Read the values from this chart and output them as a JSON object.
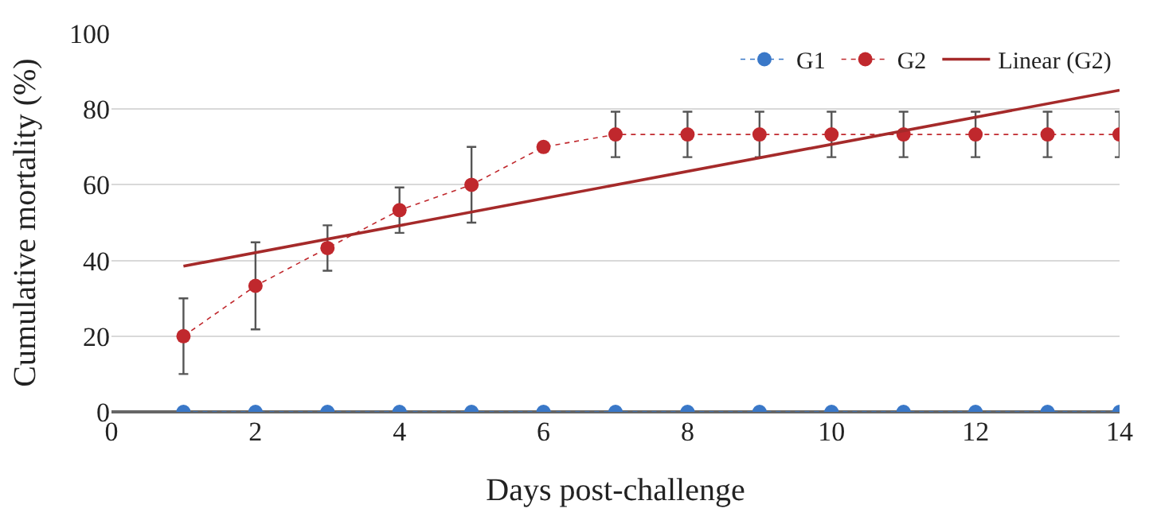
{
  "chart_data": {
    "type": "line",
    "xlabel": "Days post-challenge",
    "ylabel": "Cumulative mortality (%)",
    "x": [
      1,
      2,
      3,
      4,
      5,
      6,
      7,
      8,
      9,
      10,
      11,
      12,
      13,
      14
    ],
    "series": [
      {
        "name": "G1",
        "color": "#3a78c8",
        "values": [
          0,
          0,
          0,
          0,
          0,
          0,
          0,
          0,
          0,
          0,
          0,
          0,
          0,
          0
        ],
        "marker": "circle",
        "line_style": "dotted"
      },
      {
        "name": "G2",
        "color": "#c0282d",
        "values": [
          20,
          33.3,
          43.3,
          53.3,
          60,
          70,
          73.3,
          73.3,
          73.3,
          73.3,
          73.3,
          73.3,
          73.3,
          73.3
        ],
        "errors": [
          10,
          11.5,
          6,
          6,
          10,
          null,
          6,
          6,
          6,
          6,
          6,
          6,
          6,
          6
        ],
        "marker": "circle",
        "line_style": "dotted"
      },
      {
        "name": "Linear (G2)",
        "type": "line",
        "color": "#a52a2a",
        "x": [
          1,
          14
        ],
        "values": [
          38.5,
          85
        ],
        "marker": "none",
        "line_style": "solid"
      }
    ],
    "xlim": [
      0,
      14
    ],
    "xticks": [
      0,
      2,
      4,
      6,
      8,
      10,
      12,
      14
    ],
    "ylim": [
      0,
      100
    ],
    "yticks": [
      0,
      20,
      40,
      60,
      80,
      100
    ],
    "grid": "y",
    "legend": "top right"
  }
}
